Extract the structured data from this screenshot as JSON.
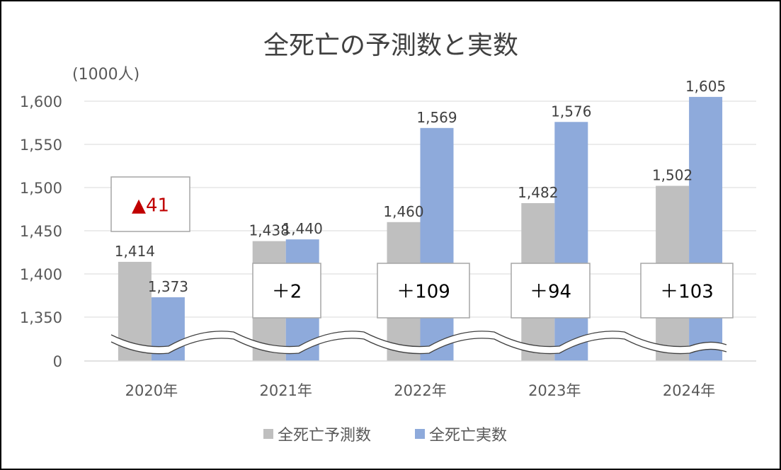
{
  "chart_data": {
    "type": "bar",
    "title": "全死亡の予測数と実数",
    "unit_label": "(1000人)",
    "categories": [
      "2020年",
      "2021年",
      "2022年",
      "2023年",
      "2024年"
    ],
    "series": [
      {
        "name": "全死亡予測数",
        "values": [
          1414,
          1438,
          1460,
          1482,
          1502
        ],
        "labels": [
          "1,414",
          "1,438",
          "1,460",
          "1,482",
          "1,502"
        ]
      },
      {
        "name": "全死亡実数",
        "values": [
          1373,
          1440,
          1569,
          1576,
          1605
        ],
        "labels": [
          "1,373",
          "1,440",
          "1,569",
          "1,576",
          "1,605"
        ]
      }
    ],
    "y_ticks": [
      {
        "value": 1600,
        "label": "1,600"
      },
      {
        "value": 1550,
        "label": "1,550"
      },
      {
        "value": 1500,
        "label": "1,500"
      },
      {
        "value": 1450,
        "label": "1,450"
      },
      {
        "value": 1400,
        "label": "1,400"
      },
      {
        "value": 1350,
        "label": "1,350"
      },
      {
        "value": 0,
        "label": "0"
      }
    ],
    "ylim": [
      1300,
      1610
    ],
    "axis_break": true,
    "grid": true,
    "legend_position": "bottom",
    "annotations": [
      "▲41",
      "＋2",
      "＋109",
      "＋94",
      "＋103"
    ],
    "colors": {
      "series": [
        "#bfbfbf",
        "#8eaadb"
      ],
      "negative_annotation": "#c00000",
      "text": "#404040",
      "tick": "#595959",
      "grid": "#d9d9d9"
    }
  }
}
